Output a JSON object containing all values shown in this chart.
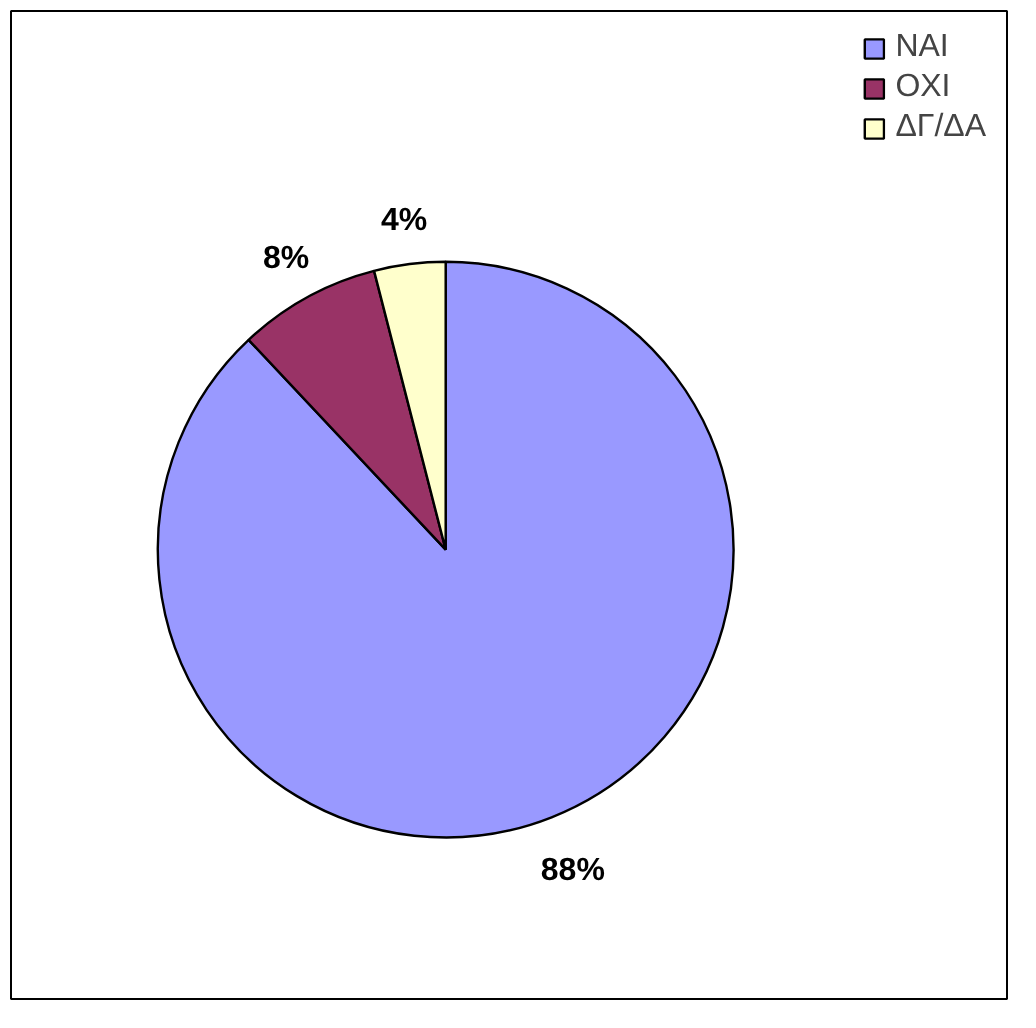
{
  "chart_data": {
    "type": "pie",
    "categories": [
      "ΝΑΙ",
      "ΟΧΙ",
      "ΔΓ/ΔΑ"
    ],
    "values": [
      88,
      8,
      4
    ],
    "colors": [
      "#9999ff",
      "#993366",
      "#ffffcc"
    ],
    "value_labels": [
      "88%",
      "8%",
      "4%"
    ],
    "legend": "top right"
  }
}
